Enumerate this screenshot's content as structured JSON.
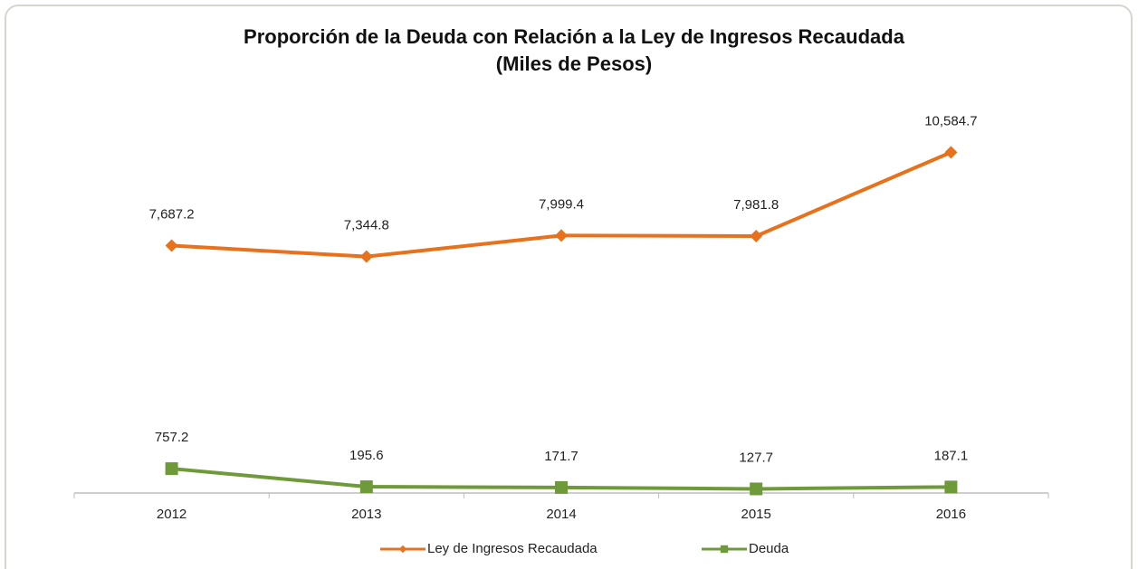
{
  "chart_data": {
    "type": "line",
    "title": "Proporción de la Deuda con Relación a la Ley de  Ingresos Recaudada",
    "subtitle": "(Miles de Pesos)",
    "categories": [
      "2012",
      "2013",
      "2014",
      "2015",
      "2016"
    ],
    "series": [
      {
        "name": "Ley de Ingresos Recaudada",
        "color": "#e8711c",
        "marker": "diamond",
        "values": [
          7687.2,
          7344.8,
          7999.4,
          7981.8,
          10584.7
        ],
        "value_labels": [
          "7,687.2",
          "7,344.8",
          "7,999.4",
          "7,981.8",
          "10,584.7"
        ]
      },
      {
        "name": "Deuda",
        "color": "#6f9a3a",
        "marker": "square",
        "values": [
          757.2,
          195.6,
          171.7,
          127.7,
          187.1
        ],
        "value_labels": [
          "757.2",
          "195.6",
          "171.7",
          "127.7",
          "187.1"
        ]
      }
    ],
    "ylim": [
      0,
      12000
    ],
    "legend": "bottom"
  }
}
